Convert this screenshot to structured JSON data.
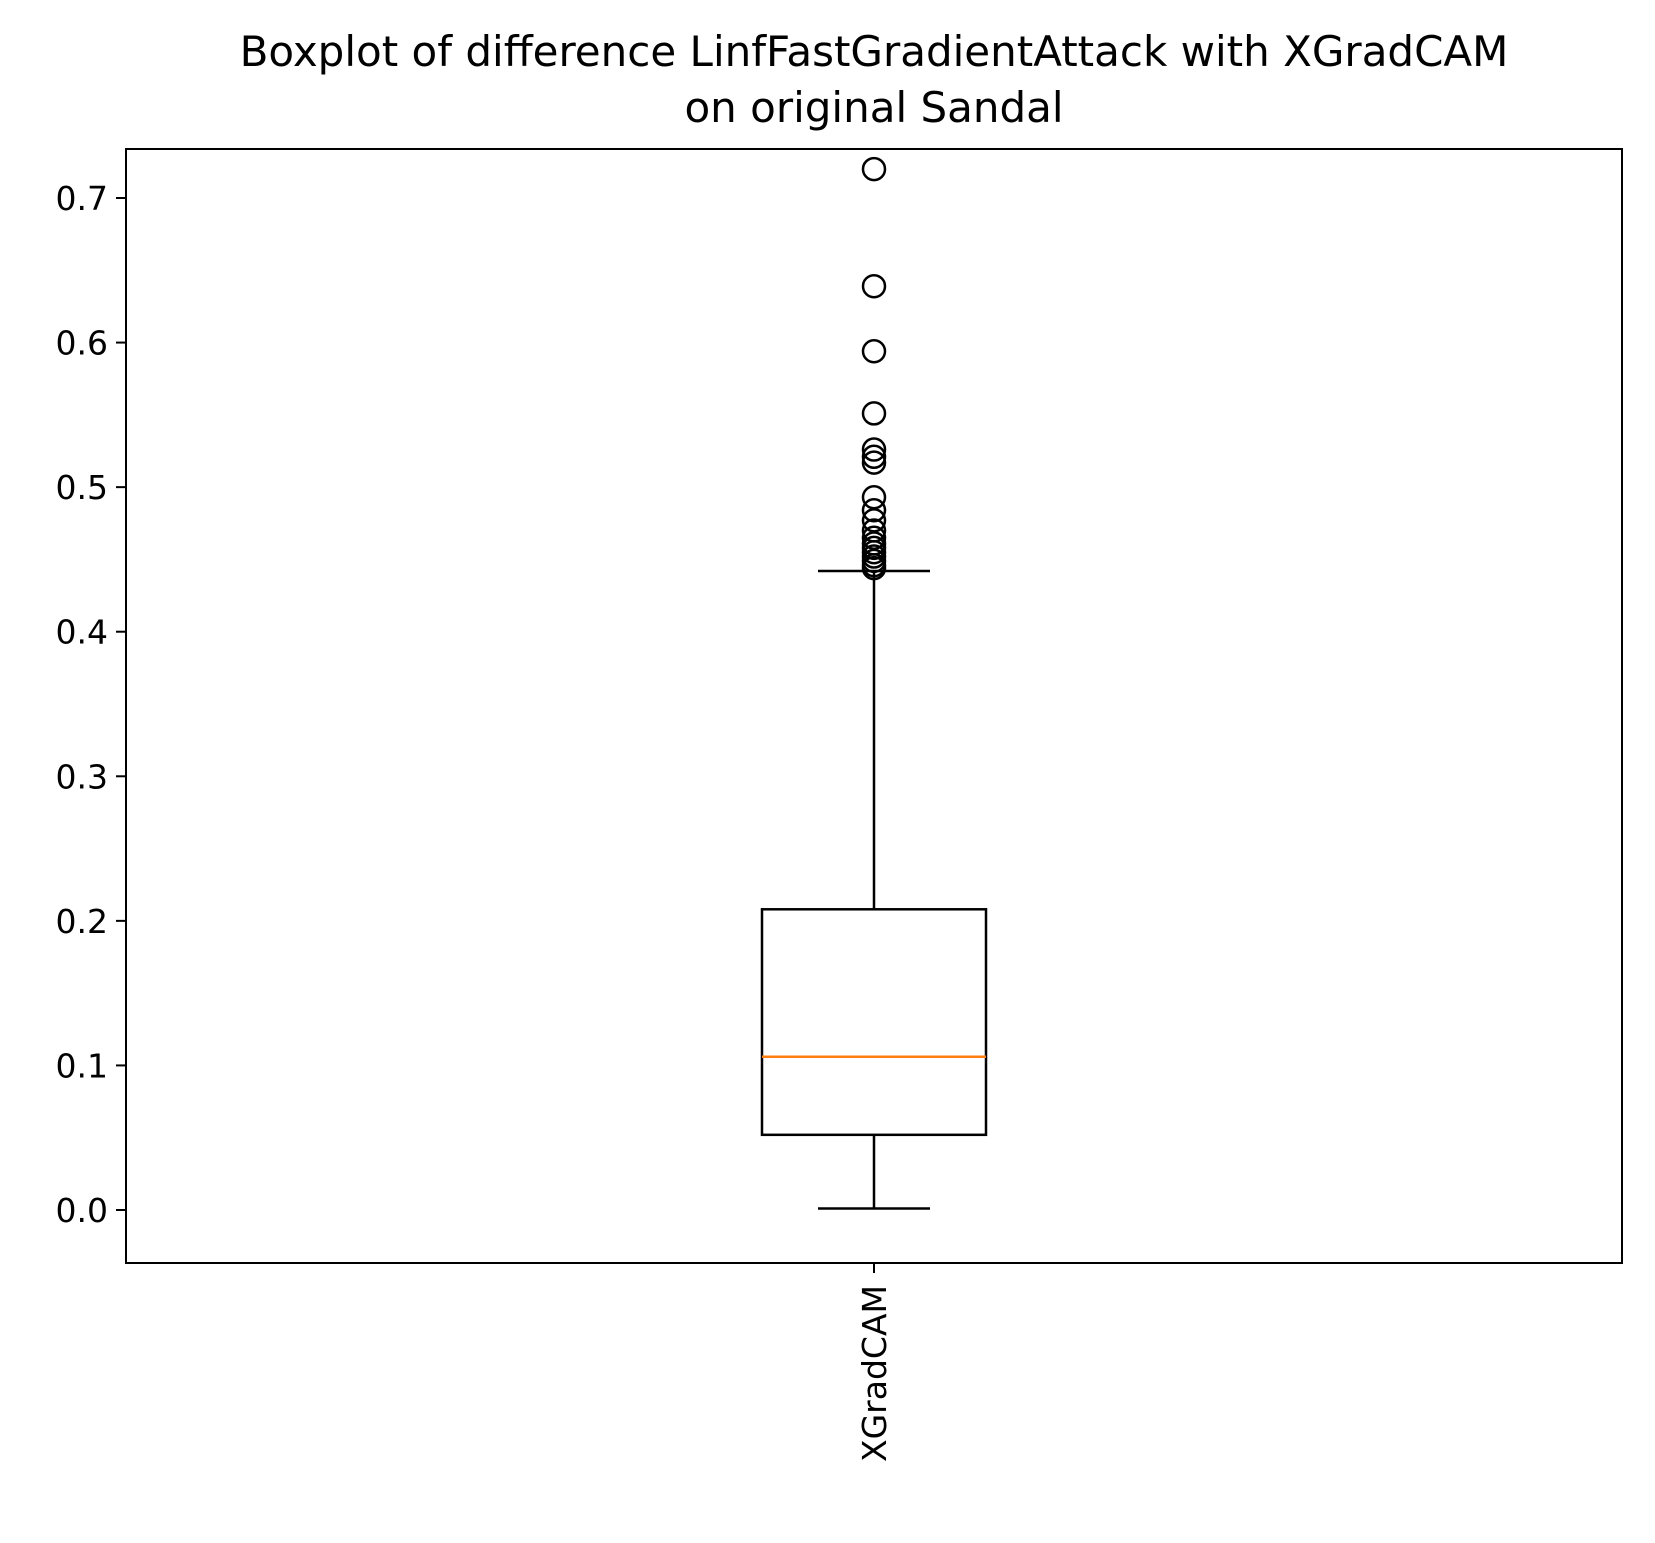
{
  "chart_data": {
    "type": "boxplot",
    "title": "Boxplot of difference LinfFastGradientAttack with XGradCAM",
    "subtitle": "on original Sandal",
    "xlabel": "",
    "ylabel": "",
    "ylim": [
      -0.035,
      0.755
    ],
    "yticks": [
      0.0,
      0.1,
      0.2,
      0.3,
      0.4,
      0.5,
      0.6,
      0.7
    ],
    "ytick_labels": [
      "0.0",
      "0.1",
      "0.2",
      "0.3",
      "0.4",
      "0.5",
      "0.6",
      "0.7"
    ],
    "categories": [
      "XGradCAM"
    ],
    "grid": false,
    "colors": {
      "box": "#000000",
      "median": "#ff7f0e",
      "flier": "#000000"
    },
    "boxes": [
      {
        "category": "XGradCAM",
        "whisker_low": 0.001,
        "q1": 0.052,
        "median": 0.106,
        "q3": 0.208,
        "whisker_high": 0.442,
        "outliers": [
          0.444,
          0.446,
          0.449,
          0.452,
          0.455,
          0.458,
          0.461,
          0.465,
          0.47,
          0.477,
          0.484,
          0.493,
          0.517,
          0.521,
          0.526,
          0.551,
          0.594,
          0.639,
          0.72
        ]
      }
    ]
  }
}
